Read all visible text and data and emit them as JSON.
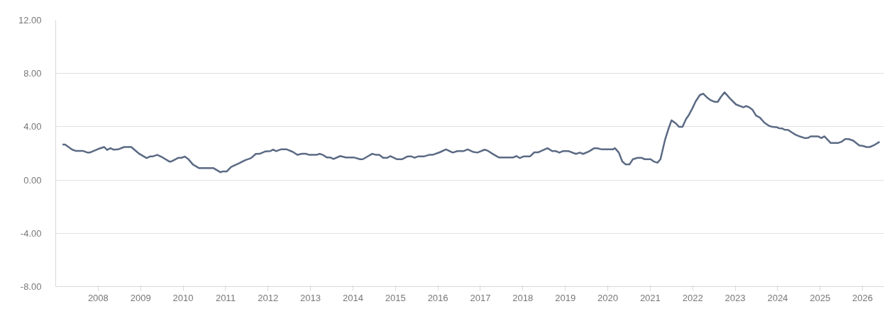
{
  "chart_data": {
    "type": "line",
    "x": [
      2007.16,
      2007.22,
      2007.39,
      2007.47,
      2007.64,
      2007.75,
      2007.8,
      2008.0,
      2008.14,
      2008.21,
      2008.29,
      2008.36,
      2008.47,
      2008.61,
      2008.78,
      2008.95,
      2009.14,
      2009.23,
      2009.29,
      2009.39,
      2009.51,
      2009.68,
      2009.74,
      2009.89,
      2009.96,
      2010.04,
      2010.12,
      2010.23,
      2010.37,
      2010.71,
      2010.88,
      2010.93,
      2011.03,
      2011.13,
      2011.32,
      2011.46,
      2011.6,
      2011.71,
      2011.8,
      2011.94,
      2012.05,
      2012.12,
      2012.19,
      2012.3,
      2012.44,
      2012.58,
      2012.69,
      2012.8,
      2012.89,
      2012.97,
      2013.14,
      2013.22,
      2013.3,
      2013.39,
      2013.47,
      2013.54,
      2013.7,
      2013.83,
      2014.03,
      2014.17,
      2014.23,
      2014.34,
      2014.45,
      2014.53,
      2014.62,
      2014.71,
      2014.81,
      2014.88,
      2015.04,
      2015.15,
      2015.29,
      2015.37,
      2015.45,
      2015.54,
      2015.68,
      2015.79,
      2015.87,
      2016.04,
      2016.19,
      2016.35,
      2016.46,
      2016.6,
      2016.7,
      2016.82,
      2016.93,
      2017.1,
      2017.18,
      2017.3,
      2017.44,
      2017.77,
      2017.85,
      2017.93,
      2018.02,
      2018.17,
      2018.27,
      2018.36,
      2018.58,
      2018.69,
      2018.78,
      2018.86,
      2018.94,
      2019.08,
      2019.25,
      2019.34,
      2019.42,
      2019.56,
      2019.68,
      2019.75,
      2019.86,
      2020.12,
      2020.17,
      2020.26,
      2020.34,
      2020.42,
      2020.51,
      2020.59,
      2020.7,
      2020.79,
      2020.87,
      2021.01,
      2021.09,
      2021.17,
      2021.24,
      2021.35,
      2021.43,
      2021.5,
      2021.6,
      2021.68,
      2021.76,
      2021.84,
      2021.91,
      2021.99,
      2022.07,
      2022.17,
      2022.25,
      2022.35,
      2022.43,
      2022.52,
      2022.59,
      2022.66,
      2022.75,
      2022.88,
      2023.02,
      2023.19,
      2023.26,
      2023.33,
      2023.41,
      2023.49,
      2023.58,
      2023.69,
      2023.8,
      2023.88,
      2023.97,
      2024.03,
      2024.11,
      2024.16,
      2024.25,
      2024.33,
      2024.42,
      2024.53,
      2024.64,
      2024.72,
      2024.78,
      2024.95,
      2025.03,
      2025.1,
      2025.17,
      2025.25,
      2025.42,
      2025.5,
      2025.59,
      2025.67,
      2025.78,
      2025.92,
      2026.01,
      2026.09,
      2026.17,
      2026.26,
      2026.4
    ],
    "series": [
      {
        "color": "#5b6a84",
        "values": [
          2.67,
          2.67,
          2.28,
          2.19,
          2.19,
          2.06,
          2.06,
          2.33,
          2.48,
          2.26,
          2.39,
          2.28,
          2.3,
          2.48,
          2.48,
          2.01,
          1.65,
          1.78,
          1.78,
          1.89,
          1.71,
          1.38,
          1.42,
          1.67,
          1.67,
          1.76,
          1.58,
          1.17,
          0.9,
          0.9,
          0.58,
          0.65,
          0.65,
          0.98,
          1.26,
          1.49,
          1.65,
          1.96,
          1.97,
          2.15,
          2.17,
          2.28,
          2.17,
          2.3,
          2.3,
          2.12,
          1.89,
          1.97,
          1.97,
          1.89,
          1.89,
          1.97,
          1.87,
          1.69,
          1.69,
          1.58,
          1.8,
          1.69,
          1.69,
          1.56,
          1.56,
          1.76,
          1.97,
          1.9,
          1.89,
          1.67,
          1.67,
          1.8,
          1.56,
          1.56,
          1.78,
          1.78,
          1.67,
          1.78,
          1.78,
          1.89,
          1.89,
          2.08,
          2.3,
          2.06,
          2.17,
          2.17,
          2.3,
          2.12,
          2.06,
          2.28,
          2.19,
          1.94,
          1.69,
          1.69,
          1.8,
          1.65,
          1.78,
          1.78,
          2.08,
          2.08,
          2.39,
          2.17,
          2.17,
          2.06,
          2.17,
          2.17,
          1.96,
          2.06,
          1.96,
          2.15,
          2.39,
          2.39,
          2.3,
          2.3,
          2.39,
          2.06,
          1.4,
          1.17,
          1.17,
          1.56,
          1.67,
          1.67,
          1.56,
          1.56,
          1.38,
          1.3,
          1.56,
          3.05,
          3.85,
          4.48,
          4.26,
          3.99,
          3.99,
          4.57,
          4.89,
          5.37,
          5.91,
          6.39,
          6.48,
          6.16,
          5.98,
          5.87,
          5.87,
          6.23,
          6.58,
          6.12,
          5.67,
          5.46,
          5.55,
          5.46,
          5.27,
          4.84,
          4.69,
          4.3,
          4.06,
          3.99,
          3.97,
          3.89,
          3.87,
          3.78,
          3.76,
          3.58,
          3.4,
          3.26,
          3.15,
          3.17,
          3.28,
          3.28,
          3.15,
          3.28,
          3.05,
          2.78,
          2.78,
          2.87,
          3.08,
          3.08,
          2.96,
          2.6,
          2.56,
          2.48,
          2.48,
          2.6,
          2.87
        ]
      }
    ],
    "xlim": [
      2007.0,
      2026.5
    ],
    "xticks": [
      2008,
      2009,
      2010,
      2011,
      2012,
      2013,
      2014,
      2015,
      2016,
      2017,
      2018,
      2019,
      2020,
      2021,
      2022,
      2023,
      2024,
      2025,
      2026
    ],
    "ylim": [
      -8,
      12
    ],
    "yticks": [
      {
        "value": -8,
        "label": "-8.00"
      },
      {
        "value": -4,
        "label": "-4.00"
      },
      {
        "value": 0,
        "label": "0.00"
      },
      {
        "value": 4,
        "label": "4.00"
      },
      {
        "value": 8,
        "label": "8.00"
      },
      {
        "value": 12,
        "label": "12.00"
      }
    ],
    "grid": "y",
    "marker": "none",
    "line_style": "solid"
  }
}
